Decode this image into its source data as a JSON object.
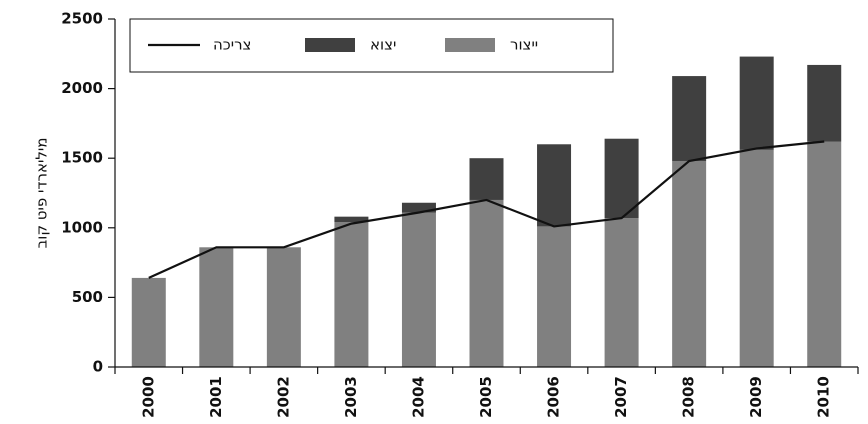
{
  "chart_data": {
    "type": "bar",
    "y_label": "מיליארדי פיט קוב",
    "categories": [
      "2000",
      "2001",
      "2002",
      "2003",
      "2004",
      "2005",
      "2006",
      "2007",
      "2008",
      "2009",
      "2010"
    ],
    "series": [
      {
        "name": "ייצור",
        "type": "bar",
        "color": "#808080",
        "values": [
          640,
          860,
          860,
          1040,
          1110,
          1200,
          1010,
          1070,
          1480,
          1560,
          1620
        ]
      },
      {
        "name": "יצוא",
        "type": "bar",
        "color": "#404040",
        "values": [
          0,
          0,
          0,
          40,
          70,
          300,
          590,
          570,
          610,
          670,
          550
        ]
      },
      {
        "name": "צריכה",
        "type": "line",
        "color": "#111111",
        "values": [
          640,
          860,
          860,
          1030,
          1110,
          1200,
          1010,
          1070,
          1480,
          1570,
          1620
        ]
      }
    ],
    "stacked": true,
    "ylim": [
      0,
      2500
    ],
    "yticks": [
      0,
      500,
      1000,
      1500,
      2000,
      2500
    ]
  }
}
